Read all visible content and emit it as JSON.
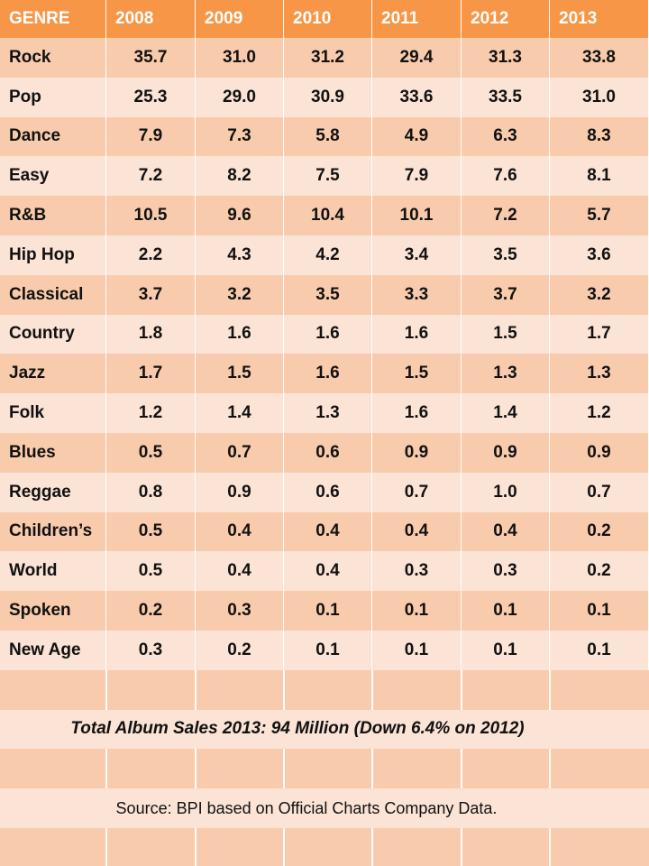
{
  "colors": {
    "header": "#f79646",
    "row_dark": "#f8cbad",
    "row_light": "#fbe3d6",
    "text": "#111111",
    "header_text": "#ffffff"
  },
  "table": {
    "header": [
      "GENRE",
      "2008",
      "2009",
      "2010",
      "2011",
      "2012",
      "2013"
    ],
    "rows": [
      [
        "Rock",
        "35.7",
        "31.0",
        "31.2",
        "29.4",
        "31.3",
        "33.8"
      ],
      [
        "Pop",
        "25.3",
        "29.0",
        "30.9",
        "33.6",
        "33.5",
        "31.0"
      ],
      [
        "Dance",
        "7.9",
        "7.3",
        "5.8",
        "4.9",
        "6.3",
        "8.3"
      ],
      [
        "Easy",
        "7.2",
        "8.2",
        "7.5",
        "7.9",
        "7.6",
        "8.1"
      ],
      [
        "R&B",
        "10.5",
        "9.6",
        "10.4",
        "10.1",
        "7.2",
        "5.7"
      ],
      [
        "Hip Hop",
        "2.2",
        "4.3",
        "4.2",
        "3.4",
        "3.5",
        "3.6"
      ],
      [
        "Classical",
        "3.7",
        "3.2",
        "3.5",
        "3.3",
        "3.7",
        "3.2"
      ],
      [
        "Country",
        "1.8",
        "1.6",
        "1.6",
        "1.6",
        "1.5",
        "1.7"
      ],
      [
        "Jazz",
        "1.7",
        "1.5",
        "1.6",
        "1.5",
        "1.3",
        "1.3"
      ],
      [
        "Folk",
        "1.2",
        "1.4",
        "1.3",
        "1.6",
        "1.4",
        "1.2"
      ],
      [
        "Blues",
        "0.5",
        "0.7",
        "0.6",
        "0.9",
        "0.9",
        "0.9"
      ],
      [
        "Reggae",
        "0.8",
        "0.9",
        "0.6",
        "0.7",
        "1.0",
        "0.7"
      ],
      [
        "Children’s",
        "0.5",
        "0.4",
        "0.4",
        "0.4",
        "0.4",
        "0.2"
      ],
      [
        "World",
        "0.5",
        "0.4",
        "0.4",
        "0.3",
        "0.3",
        "0.2"
      ],
      [
        "Spoken",
        "0.2",
        "0.3",
        "0.1",
        "0.1",
        "0.1",
        "0.1"
      ],
      [
        "New Age",
        "0.3",
        "0.2",
        "0.1",
        "0.1",
        "0.1",
        "0.1"
      ]
    ]
  },
  "footer": {
    "total": "Total Album Sales 2013:  94 Million (Down 6.4% on 2012)",
    "source": "Source: BPI based on Official Charts Company Data."
  },
  "chart_data": {
    "type": "table",
    "columns": [
      "GENRE",
      "2008",
      "2009",
      "2010",
      "2011",
      "2012",
      "2013"
    ],
    "categories": [
      "Rock",
      "Pop",
      "Dance",
      "Easy",
      "R&B",
      "Hip Hop",
      "Classical",
      "Country",
      "Jazz",
      "Folk",
      "Blues",
      "Reggae",
      "Children’s",
      "World",
      "Spoken",
      "New Age"
    ],
    "series": [
      {
        "name": "2008",
        "values": [
          35.7,
          25.3,
          7.9,
          7.2,
          10.5,
          2.2,
          3.7,
          1.8,
          1.7,
          1.2,
          0.5,
          0.8,
          0.5,
          0.5,
          0.2,
          0.3
        ]
      },
      {
        "name": "2009",
        "values": [
          31.0,
          29.0,
          7.3,
          8.2,
          9.6,
          4.3,
          3.2,
          1.6,
          1.5,
          1.4,
          0.7,
          0.9,
          0.4,
          0.4,
          0.3,
          0.2
        ]
      },
      {
        "name": "2010",
        "values": [
          31.2,
          30.9,
          5.8,
          7.5,
          10.4,
          4.2,
          3.5,
          1.6,
          1.6,
          1.3,
          0.6,
          0.6,
          0.4,
          0.4,
          0.1,
          0.1
        ]
      },
      {
        "name": "2011",
        "values": [
          29.4,
          33.6,
          4.9,
          7.9,
          10.1,
          3.4,
          3.3,
          1.6,
          1.5,
          1.6,
          0.9,
          0.7,
          0.4,
          0.3,
          0.1,
          0.1
        ]
      },
      {
        "name": "2012",
        "values": [
          31.3,
          33.5,
          6.3,
          7.6,
          7.2,
          3.5,
          3.7,
          1.5,
          1.3,
          1.4,
          0.9,
          1.0,
          0.4,
          0.3,
          0.1,
          0.1
        ]
      },
      {
        "name": "2013",
        "values": [
          33.8,
          31.0,
          8.3,
          8.1,
          5.7,
          3.6,
          3.2,
          1.7,
          1.3,
          1.2,
          0.9,
          0.7,
          0.2,
          0.2,
          0.1,
          0.1
        ]
      }
    ]
  }
}
